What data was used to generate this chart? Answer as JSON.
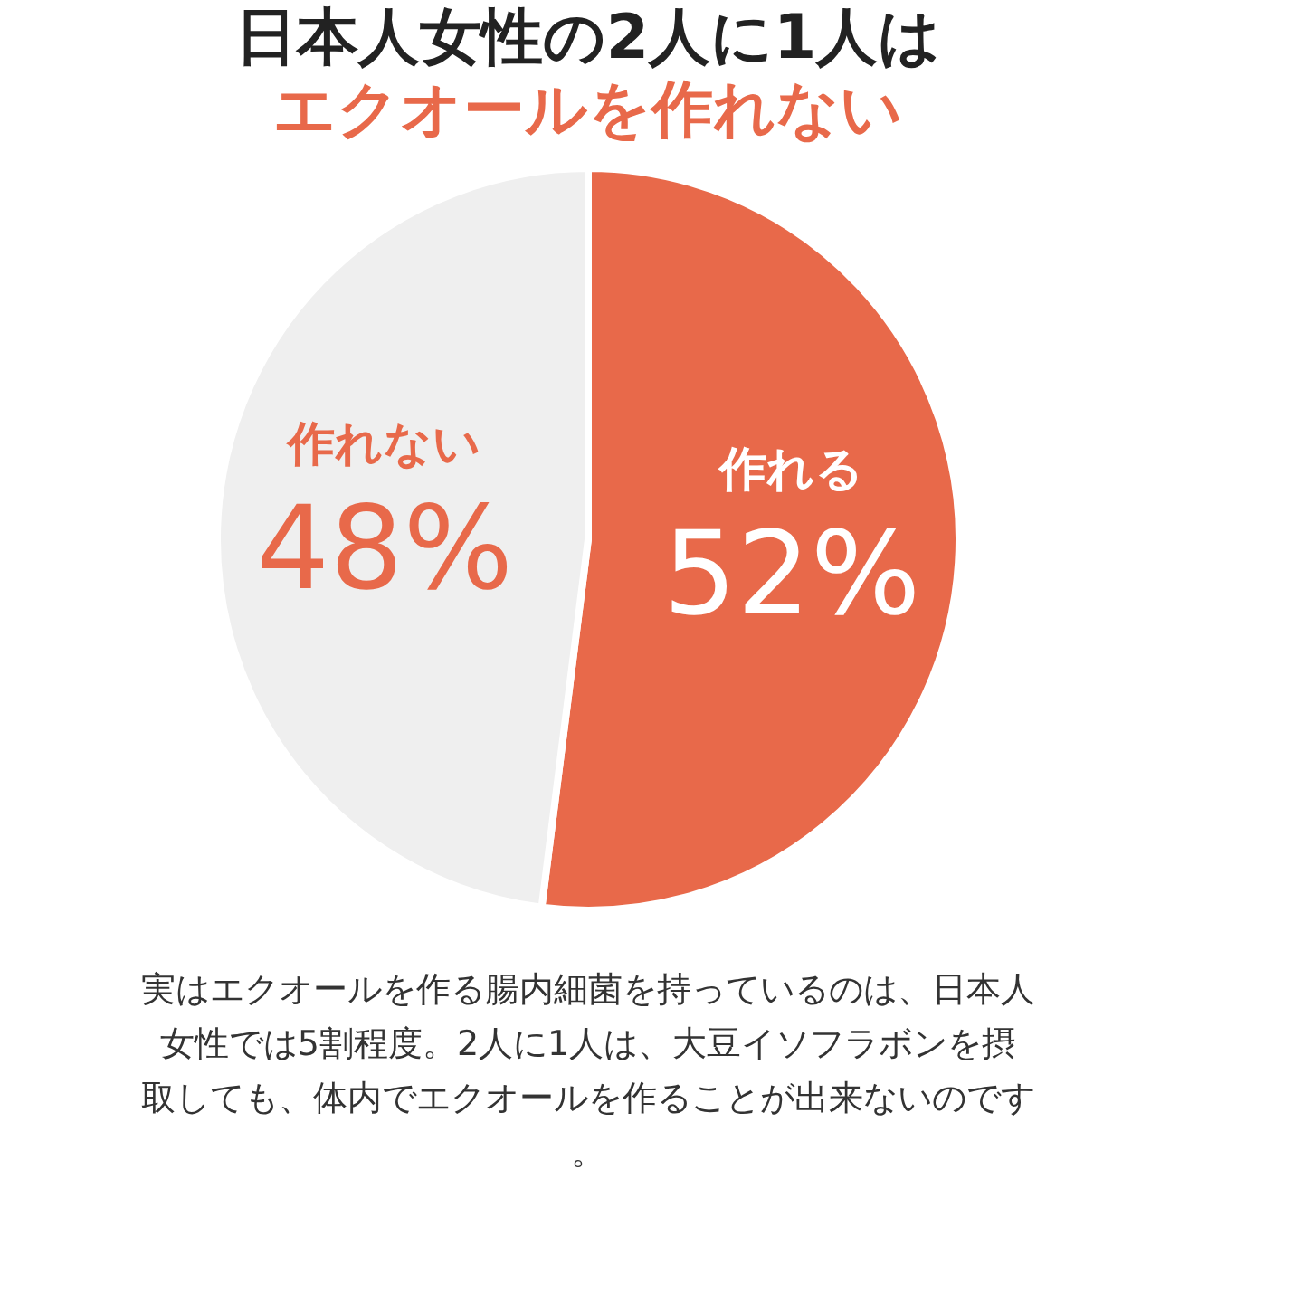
{
  "chart_data": {
    "type": "pie",
    "title": "日本人女性の2人に1人は",
    "subtitle": "エクオールを作れない",
    "categories": [
      "作れる",
      "作れない"
    ],
    "values": [
      52,
      48
    ],
    "colors": [
      "#e8694a",
      "#efefef"
    ],
    "value_labels": [
      "52%",
      "48%"
    ],
    "legend": false,
    "annotations": [
      "実はエクオールを作る腸内細菌を持っているのは、日本人女性では5割程度。2人に1人は、大豆イソフラボンを摂取しても、体内でエクオールを作ることが出来ないのです。"
    ]
  }
}
